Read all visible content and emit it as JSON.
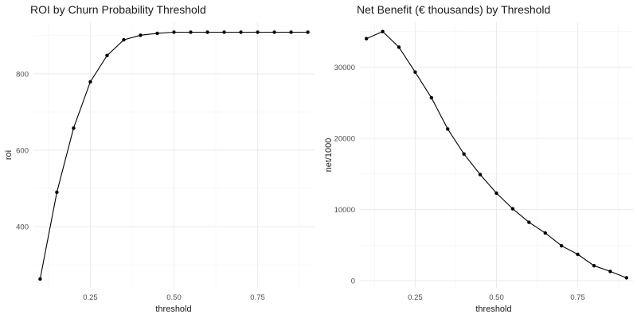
{
  "chart_data": [
    {
      "type": "line",
      "title": "ROI by Churn Probability Threshold",
      "xlabel": "threshold",
      "ylabel": "roi",
      "xlim": [
        0.08,
        0.92
      ],
      "ylim": [
        240,
        935
      ],
      "x_ticks": [
        0.25,
        0.5,
        0.75
      ],
      "x_tick_labels": [
        "0.25",
        "0.50",
        "0.75"
      ],
      "x_minor": [
        0.125,
        0.375,
        0.625,
        0.875
      ],
      "y_ticks": [
        400,
        600,
        800
      ],
      "y_tick_labels": [
        "400",
        "600",
        "800"
      ],
      "y_minor": [
        300,
        500,
        700,
        900
      ],
      "grid": true,
      "x": [
        0.1,
        0.15,
        0.2,
        0.25,
        0.3,
        0.35,
        0.4,
        0.45,
        0.5,
        0.55,
        0.6,
        0.65,
        0.7,
        0.75,
        0.8,
        0.85,
        0.9
      ],
      "y": [
        263,
        490,
        658,
        779,
        848,
        889,
        901,
        906,
        909,
        909,
        909,
        909,
        909,
        909,
        909,
        909,
        909
      ]
    },
    {
      "type": "line",
      "title": "Net Benefit (€ thousands) by Threshold",
      "xlabel": "threshold",
      "ylabel": "net/1000",
      "xlim": [
        0.08,
        0.92
      ],
      "ylim": [
        -1000,
        36300
      ],
      "x_ticks": [
        0.25,
        0.5,
        0.75
      ],
      "x_tick_labels": [
        "0.25",
        "0.50",
        "0.75"
      ],
      "x_minor": [
        0.125,
        0.375,
        0.625,
        0.875
      ],
      "y_ticks": [
        0,
        10000,
        20000,
        30000
      ],
      "y_tick_labels": [
        "0",
        "10000",
        "20000",
        "30000"
      ],
      "y_minor": [
        5000,
        15000,
        25000,
        35000
      ],
      "grid": true,
      "x": [
        0.1,
        0.15,
        0.2,
        0.25,
        0.3,
        0.35,
        0.4,
        0.45,
        0.5,
        0.55,
        0.6,
        0.65,
        0.7,
        0.75,
        0.8,
        0.85,
        0.9
      ],
      "y": [
        34000,
        35000,
        32800,
        29300,
        25700,
        21300,
        17800,
        14900,
        12300,
        10100,
        8200,
        6700,
        4900,
        3700,
        2100,
        1300,
        400
      ]
    }
  ]
}
